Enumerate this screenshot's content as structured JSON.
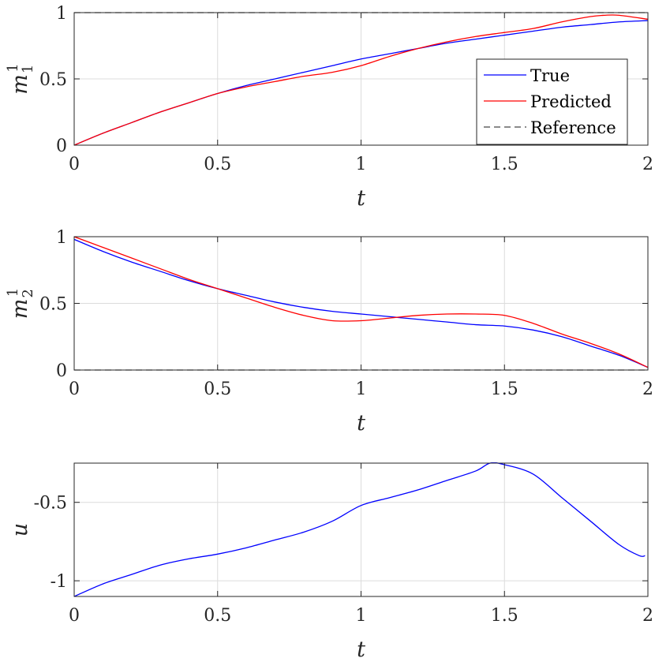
{
  "chart_data": [
    {
      "type": "line",
      "ylabel": "m",
      "ylabel_sup": "1",
      "ylabel_sub": "1",
      "xlabel": "t",
      "xlim": [
        0,
        2
      ],
      "ylim": [
        0,
        1
      ],
      "xticks": [
        "0",
        "0.5",
        "1",
        "1.5",
        "2"
      ],
      "yticks": [
        "0",
        "0.5",
        "1"
      ],
      "grid": true,
      "legend": {
        "placement": "bottom-right",
        "entries": [
          "True",
          "Predicted",
          "Reference"
        ]
      },
      "series": [
        {
          "name": "True",
          "color": "#0000ff",
          "dash": false,
          "x": [
            0,
            0.1,
            0.2,
            0.3,
            0.4,
            0.5,
            0.6,
            0.7,
            0.8,
            0.9,
            1.0,
            1.1,
            1.2,
            1.3,
            1.4,
            1.5,
            1.6,
            1.7,
            1.8,
            1.9,
            2.0
          ],
          "y": [
            0.0,
            0.09,
            0.17,
            0.25,
            0.32,
            0.39,
            0.45,
            0.5,
            0.55,
            0.6,
            0.65,
            0.69,
            0.73,
            0.77,
            0.8,
            0.83,
            0.86,
            0.89,
            0.91,
            0.93,
            0.94
          ]
        },
        {
          "name": "Predicted",
          "color": "#ff0000",
          "dash": false,
          "x": [
            0,
            0.1,
            0.2,
            0.3,
            0.4,
            0.5,
            0.6,
            0.7,
            0.8,
            0.9,
            1.0,
            1.1,
            1.2,
            1.3,
            1.4,
            1.5,
            1.6,
            1.7,
            1.8,
            1.85,
            1.9,
            2.0
          ],
          "y": [
            0.0,
            0.09,
            0.17,
            0.25,
            0.32,
            0.39,
            0.44,
            0.48,
            0.52,
            0.55,
            0.6,
            0.67,
            0.73,
            0.78,
            0.82,
            0.85,
            0.88,
            0.93,
            0.97,
            0.98,
            0.98,
            0.95
          ]
        },
        {
          "name": "Reference",
          "color": "#444444",
          "dash": true,
          "x": [
            0,
            2
          ],
          "y": [
            1,
            1
          ]
        }
      ]
    },
    {
      "type": "line",
      "ylabel": "m",
      "ylabel_sup": "1",
      "ylabel_sub": "2",
      "xlabel": "t",
      "xlim": [
        0,
        2
      ],
      "ylim": [
        0,
        1
      ],
      "xticks": [
        "0",
        "0.5",
        "1",
        "1.5",
        "2"
      ],
      "yticks": [
        "0",
        "0.5",
        "1"
      ],
      "grid": true,
      "series": [
        {
          "name": "True",
          "color": "#0000ff",
          "dash": false,
          "x": [
            0,
            0.1,
            0.2,
            0.3,
            0.4,
            0.5,
            0.6,
            0.7,
            0.8,
            0.9,
            1.0,
            1.1,
            1.2,
            1.3,
            1.4,
            1.5,
            1.6,
            1.7,
            1.8,
            1.9,
            2.0
          ],
          "y": [
            0.98,
            0.89,
            0.81,
            0.74,
            0.67,
            0.61,
            0.56,
            0.51,
            0.47,
            0.44,
            0.42,
            0.4,
            0.38,
            0.36,
            0.34,
            0.33,
            0.3,
            0.25,
            0.18,
            0.11,
            0.02
          ]
        },
        {
          "name": "Predicted",
          "color": "#ff0000",
          "dash": false,
          "x": [
            0,
            0.1,
            0.2,
            0.3,
            0.4,
            0.5,
            0.6,
            0.7,
            0.8,
            0.9,
            1.0,
            1.1,
            1.2,
            1.3,
            1.4,
            1.5,
            1.6,
            1.7,
            1.8,
            1.9,
            2.0
          ],
          "y": [
            1.0,
            0.92,
            0.84,
            0.76,
            0.68,
            0.61,
            0.54,
            0.47,
            0.41,
            0.37,
            0.37,
            0.39,
            0.41,
            0.42,
            0.42,
            0.41,
            0.35,
            0.27,
            0.2,
            0.12,
            0.02
          ]
        },
        {
          "name": "Reference",
          "color": "#444444",
          "dash": true,
          "x": [
            0,
            2
          ],
          "y": [
            0,
            0
          ]
        }
      ]
    },
    {
      "type": "line",
      "ylabel": "u",
      "xlabel": "t",
      "xlim": [
        0,
        2
      ],
      "ylim": [
        -1.1,
        -0.25
      ],
      "xticks": [
        "0",
        "0.5",
        "1",
        "1.5",
        "2"
      ],
      "yticks": [
        "-1",
        "-0.5"
      ],
      "ytick_values": [
        -1,
        -0.5
      ],
      "grid": true,
      "series": [
        {
          "name": "",
          "color": "#0000ff",
          "dash": false,
          "x": [
            0,
            0.1,
            0.2,
            0.3,
            0.4,
            0.5,
            0.6,
            0.7,
            0.8,
            0.9,
            1.0,
            1.1,
            1.2,
            1.3,
            1.4,
            1.45,
            1.5,
            1.6,
            1.7,
            1.8,
            1.9,
            1.97,
            1.99
          ],
          "y": [
            -1.1,
            -1.02,
            -0.96,
            -0.9,
            -0.86,
            -0.83,
            -0.79,
            -0.74,
            -0.69,
            -0.62,
            -0.52,
            -0.47,
            -0.42,
            -0.36,
            -0.3,
            -0.25,
            -0.26,
            -0.32,
            -0.47,
            -0.62,
            -0.77,
            -0.84,
            -0.84
          ]
        }
      ]
    }
  ]
}
